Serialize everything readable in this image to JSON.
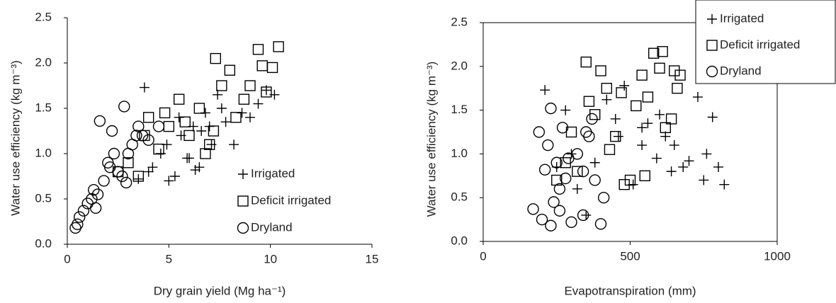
{
  "chart_data": [
    {
      "type": "scatter",
      "x_label": "Dry grain yield (Mg ha⁻¹)",
      "y_label": "Water use efficiency (kg m⁻³)",
      "xlim": [
        0,
        15
      ],
      "xticks": [
        0,
        5,
        10,
        15
      ],
      "ylim": [
        0,
        2.5
      ],
      "yticks": [
        {
          "value": 0,
          "label": "0.0"
        },
        0.5,
        {
          "value": 1,
          "label": "1.0"
        },
        1.5,
        {
          "value": 2,
          "label": "2.0"
        },
        2.5
      ],
      "legend": "lower right",
      "frame": false,
      "series": [
        {
          "name": "Irrigated",
          "marker": "plus",
          "color": "#000000",
          "x": [
            3.8,
            4.2,
            4.6,
            5.0,
            5.3,
            5.6,
            5.9,
            6.2,
            6.5,
            6.8,
            7.1,
            7.4,
            7.8,
            8.2,
            8.6,
            9.0,
            9.4,
            9.8,
            10.2,
            4.9,
            5.5,
            6.0,
            6.6,
            7.0,
            3.5,
            4.0,
            6.3,
            7.6
          ],
          "values": [
            1.73,
            0.85,
            1.0,
            0.7,
            0.75,
            1.2,
            0.95,
            1.3,
            0.85,
            1.45,
            1.1,
            1.65,
            1.35,
            1.1,
            1.45,
            1.4,
            1.55,
            1.7,
            1.65,
            1.1,
            1.4,
            0.95,
            1.25,
            1.3,
            0.72,
            0.8,
            0.82,
            1.5
          ]
        },
        {
          "name": "Deficit irrigated",
          "marker": "square",
          "color": "#000000",
          "x": [
            3.0,
            3.5,
            4.0,
            4.5,
            5.0,
            5.5,
            6.0,
            6.5,
            7.0,
            7.3,
            7.6,
            8.0,
            8.3,
            8.7,
            9.0,
            9.4,
            9.6,
            9.8,
            10.1,
            10.4,
            2.5,
            3.8,
            4.8,
            5.8,
            7.2,
            6.8
          ],
          "values": [
            0.9,
            0.75,
            1.4,
            1.05,
            1.3,
            1.6,
            1.2,
            1.5,
            1.1,
            2.05,
            1.75,
            1.92,
            1.4,
            1.6,
            1.75,
            2.15,
            1.97,
            1.68,
            1.95,
            2.18,
            0.8,
            1.2,
            1.45,
            1.35,
            1.25,
            1.0
          ]
        },
        {
          "name": "Dryland",
          "marker": "circle",
          "color": "#000000",
          "x": [
            0.4,
            0.5,
            0.6,
            0.8,
            1.0,
            1.2,
            1.3,
            1.5,
            1.6,
            1.8,
            2.0,
            2.2,
            2.3,
            2.5,
            2.7,
            2.8,
            3.0,
            3.2,
            3.5,
            3.7,
            4.0,
            4.5,
            1.4,
            2.9,
            3.4,
            2.1
          ],
          "values": [
            0.18,
            0.22,
            0.3,
            0.37,
            0.45,
            0.5,
            0.6,
            0.55,
            1.36,
            0.7,
            0.9,
            1.25,
            1.0,
            0.8,
            0.75,
            1.52,
            1.0,
            1.1,
            1.3,
            1.2,
            1.15,
            1.3,
            0.4,
            0.68,
            1.2,
            0.85
          ]
        }
      ]
    },
    {
      "type": "scatter",
      "x_label": "Evapotranspiration (mm)",
      "y_label": "Water use efficiency (kg m⁻³)",
      "xlim": [
        0,
        1000
      ],
      "xticks": [
        0,
        500,
        1000
      ],
      "ylim": [
        0,
        2.5
      ],
      "yticks": [
        {
          "value": 0,
          "label": "0.0"
        },
        0.5,
        {
          "value": 1,
          "label": "1.0"
        },
        1.5,
        {
          "value": 2,
          "label": "2.0"
        },
        2.5
      ],
      "legend": "upper right outside",
      "frame": true,
      "series": [
        {
          "name": "Irrigated",
          "marker": "plus",
          "color": "#000000",
          "x": [
            210,
            250,
            280,
            320,
            350,
            380,
            420,
            450,
            480,
            510,
            540,
            560,
            590,
            620,
            650,
            680,
            700,
            730,
            750,
            760,
            780,
            800,
            820,
            300,
            460,
            600,
            640,
            540
          ],
          "values": [
            1.73,
            0.85,
            1.5,
            0.6,
            0.3,
            0.9,
            1.62,
            1.4,
            1.78,
            0.65,
            1.1,
            1.35,
            0.95,
            1.2,
            1.1,
            0.85,
            0.92,
            1.65,
            0.7,
            1.0,
            1.42,
            0.85,
            0.65,
            1.0,
            1.2,
            1.45,
            0.8,
            1.3
          ]
        },
        {
          "name": "Deficit irrigated",
          "marker": "square",
          "color": "#000000",
          "x": [
            250,
            280,
            320,
            350,
            360,
            380,
            400,
            420,
            450,
            470,
            500,
            520,
            540,
            560,
            580,
            600,
            610,
            620,
            650,
            660,
            670,
            300,
            430,
            480,
            550,
            640
          ],
          "values": [
            0.7,
            0.9,
            0.8,
            2.05,
            1.6,
            1.45,
            1.95,
            1.75,
            1.2,
            1.7,
            0.7,
            1.55,
            1.9,
            1.65,
            2.15,
            1.98,
            2.17,
            1.3,
            1.95,
            1.75,
            1.9,
            1.25,
            1.05,
            0.65,
            0.75,
            1.4
          ]
        },
        {
          "name": "Dryland",
          "marker": "circle",
          "color": "#000000",
          "x": [
            170,
            190,
            200,
            210,
            220,
            230,
            240,
            250,
            260,
            270,
            280,
            300,
            320,
            340,
            350,
            360,
            380,
            400,
            410,
            230,
            260,
            290,
            340,
            370
          ],
          "values": [
            0.37,
            1.25,
            0.25,
            0.82,
            1.1,
            1.52,
            0.45,
            0.9,
            0.35,
            1.3,
            0.72,
            0.22,
            1.0,
            0.3,
            1.25,
            1.2,
            0.7,
            0.2,
            0.5,
            0.18,
            0.6,
            0.95,
            0.8,
            1.4
          ]
        }
      ]
    }
  ]
}
